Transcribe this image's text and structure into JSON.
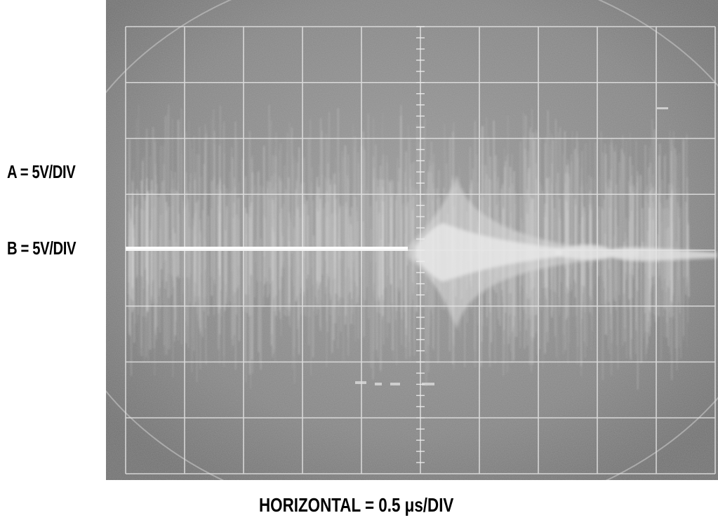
{
  "scope": {
    "channel_a_label": "A = 5V/DIV",
    "channel_b_label": "B = 5V/DIV",
    "horizontal_label": "HORIZONTAL = 0.5 μs/DIV"
  },
  "colors": {
    "screen": "#8c8c8c",
    "graticule": "#e6e6e6",
    "trace": "#f2f2f2",
    "background": "#ffffff",
    "text": "#000000"
  }
}
